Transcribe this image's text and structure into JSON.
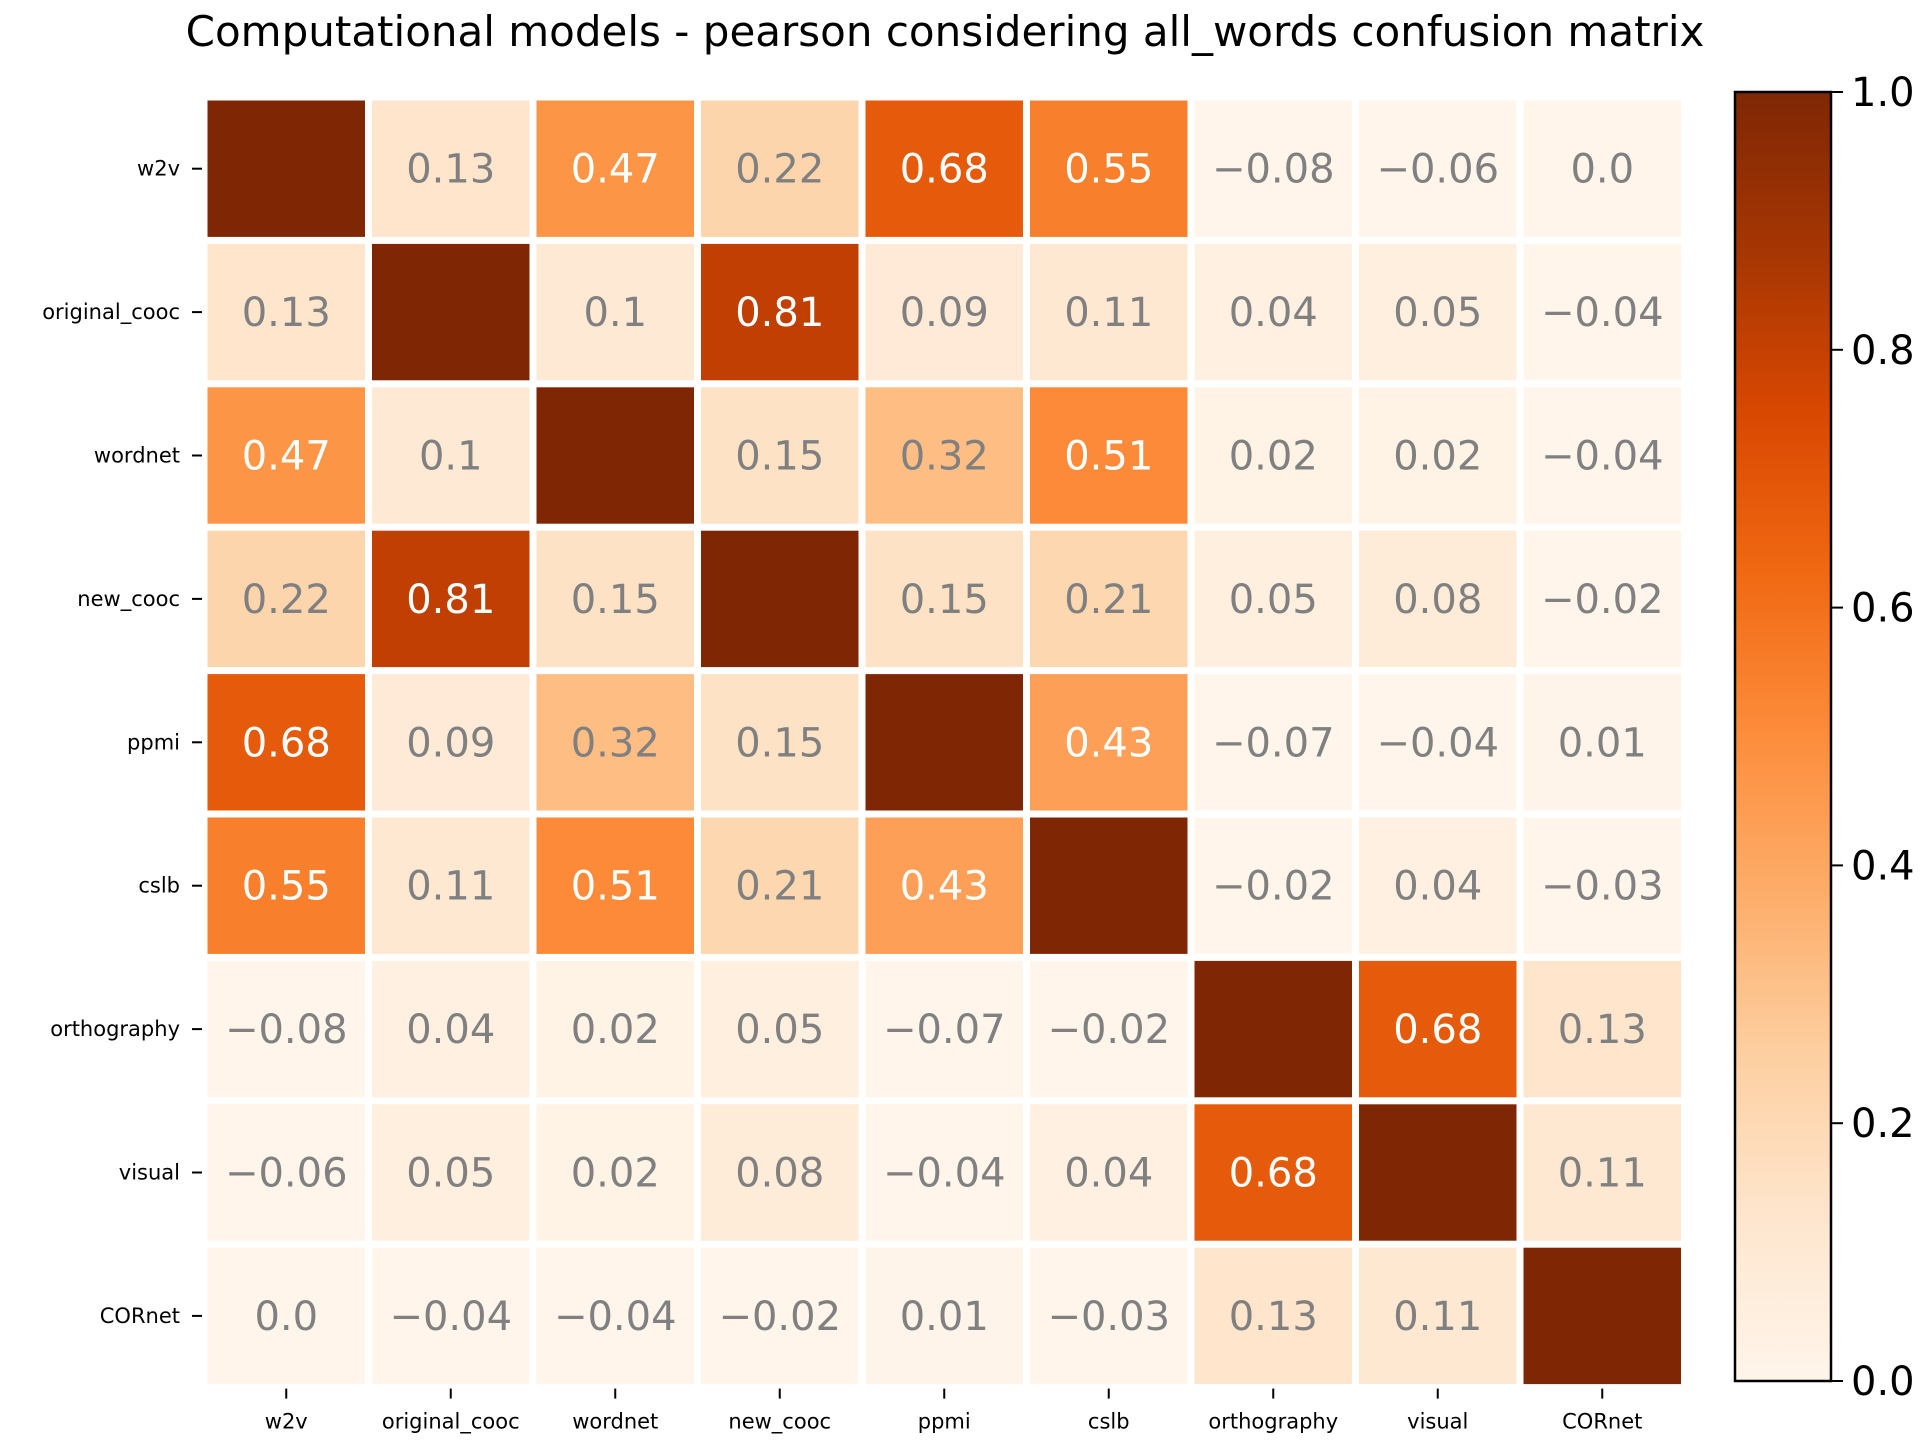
{
  "chart_data": {
    "type": "heatmap",
    "title": "Computational models - pearson considering all_words confusion matrix",
    "xlabel": "",
    "ylabel": "",
    "x_labels": [
      "w2v",
      "original_cooc",
      "wordnet",
      "new_cooc",
      "ppmi",
      "cslb",
      "orthography",
      "visual",
      "CORnet"
    ],
    "y_labels": [
      "w2v",
      "original_cooc",
      "wordnet",
      "new_cooc",
      "ppmi",
      "cslb",
      "orthography",
      "visual",
      "CORnet"
    ],
    "values": [
      [
        1.0,
        0.13,
        0.47,
        0.22,
        0.68,
        0.55,
        -0.08,
        -0.06,
        0.0
      ],
      [
        0.13,
        1.0,
        0.1,
        0.81,
        0.09,
        0.11,
        0.04,
        0.05,
        -0.04
      ],
      [
        0.47,
        0.1,
        1.0,
        0.15,
        0.32,
        0.51,
        0.02,
        0.02,
        -0.04
      ],
      [
        0.22,
        0.81,
        0.15,
        1.0,
        0.15,
        0.21,
        0.05,
        0.08,
        -0.02
      ],
      [
        0.68,
        0.09,
        0.32,
        0.15,
        1.0,
        0.43,
        -0.07,
        -0.04,
        0.01
      ],
      [
        0.55,
        0.11,
        0.51,
        0.21,
        0.43,
        1.0,
        -0.02,
        0.04,
        -0.03
      ],
      [
        -0.08,
        0.04,
        0.02,
        0.05,
        -0.07,
        -0.02,
        1.0,
        0.68,
        0.13
      ],
      [
        -0.06,
        0.05,
        0.02,
        0.08,
        -0.04,
        0.04,
        0.68,
        1.0,
        0.11
      ],
      [
        0.0,
        -0.04,
        -0.04,
        -0.02,
        0.01,
        -0.03,
        0.13,
        0.11,
        1.0
      ]
    ],
    "cell_labels": [
      [
        "",
        "0.13",
        "0.47",
        "0.22",
        "0.68",
        "0.55",
        "−0.08",
        "−0.06",
        "0.0"
      ],
      [
        "0.13",
        "",
        "0.1",
        "0.81",
        "0.09",
        "0.11",
        "0.04",
        "0.05",
        "−0.04"
      ],
      [
        "0.47",
        "0.1",
        "",
        "0.15",
        "0.32",
        "0.51",
        "0.02",
        "0.02",
        "−0.04"
      ],
      [
        "0.22",
        "0.81",
        "0.15",
        "",
        "0.15",
        "0.21",
        "0.05",
        "0.08",
        "−0.02"
      ],
      [
        "0.68",
        "0.09",
        "0.32",
        "0.15",
        "",
        "0.43",
        "−0.07",
        "−0.04",
        "0.01"
      ],
      [
        "0.55",
        "0.11",
        "0.51",
        "0.21",
        "0.43",
        "",
        "−0.02",
        "0.04",
        "−0.03"
      ],
      [
        "−0.08",
        "0.04",
        "0.02",
        "0.05",
        "−0.07",
        "−0.02",
        "",
        "0.68",
        "0.13"
      ],
      [
        "−0.06",
        "0.05",
        "0.02",
        "0.08",
        "−0.04",
        "0.04",
        "0.68",
        "",
        "0.11"
      ],
      [
        "0.0",
        "−0.04",
        "−0.04",
        "−0.02",
        "0.01",
        "−0.03",
        "0.13",
        "0.11",
        ""
      ]
    ],
    "colorbar": {
      "range": [
        0.0,
        1.0
      ],
      "ticks": [
        0.0,
        0.2,
        0.4,
        0.6,
        0.8,
        1.0
      ],
      "tick_labels": [
        "0.0",
        "0.2",
        "0.4",
        "0.6",
        "0.8",
        "1.0"
      ],
      "colormap": "Oranges",
      "placement": "right"
    },
    "colors": {
      "colormap_stops": [
        "#fff5eb",
        "#fee6ce",
        "#fdd0a2",
        "#fdae6b",
        "#fd8d3c",
        "#f16913",
        "#d94801",
        "#a63603",
        "#7f2704"
      ],
      "text_light": "#ffffff",
      "text_dark": "#808080",
      "gap": "#ffffff"
    },
    "grid": false,
    "legend": "none"
  }
}
